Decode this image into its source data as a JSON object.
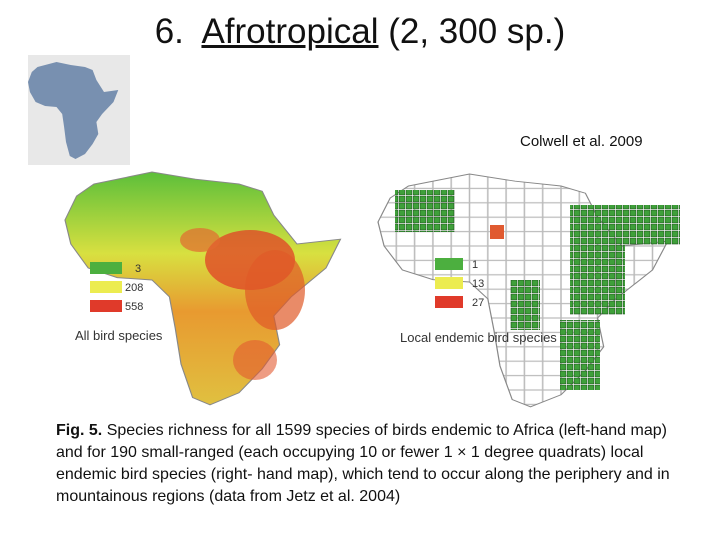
{
  "title": {
    "number": "6.",
    "region": "Afrotropical",
    "count": "(2, 300 sp.)"
  },
  "citation": "Colwell et al. 2009",
  "left_map": {
    "legend": [
      "3",
      "208",
      "558"
    ],
    "label": "All bird species"
  },
  "right_map": {
    "legend": [
      "1",
      "13",
      "27"
    ],
    "label": "Local endemic bird species"
  },
  "caption": {
    "figure": "Fig. 5.",
    "text": "Species richness for all 1599 species of birds endemic to Africa (left-hand map) and for 190 small-ranged (each occupying 10 or fewer 1 × 1 degree quadrats) local endemic bird species (right- hand map), which tend to occur along the periphery and in mountainous regions (data from Jetz et al. 2004)"
  }
}
